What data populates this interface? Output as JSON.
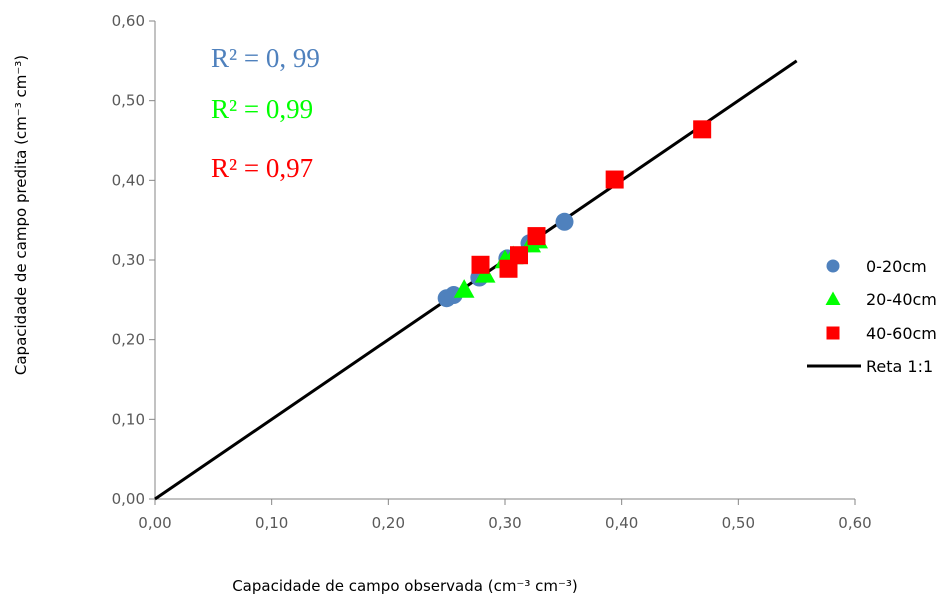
{
  "chart_data": {
    "type": "scatter",
    "xlabel": "Capacidade de campo  observada (cm⁻³ cm⁻³)",
    "ylabel": "Capacidade de campo predita (cm⁻³ cm⁻³)",
    "xlim": [
      0,
      0.6
    ],
    "ylim": [
      0,
      0.6
    ],
    "x_ticks": [
      0,
      0.1,
      0.2,
      0.3,
      0.4,
      0.5,
      0.6
    ],
    "y_ticks": [
      0,
      0.1,
      0.2,
      0.3,
      0.4,
      0.5,
      0.6
    ],
    "x_tick_labels": [
      "0,00",
      "0,10",
      "0,20",
      "0,30",
      "0,40",
      "0,50",
      "0,60"
    ],
    "y_tick_labels": [
      "0,00",
      "0,10",
      "0,20",
      "0,30",
      "0,40",
      "0,50",
      "0,60"
    ],
    "grid": false,
    "legend_position": "right",
    "series": [
      {
        "name": "0-20cm",
        "marker": "circle",
        "color": "#4F81BD",
        "points": [
          [
            0.25,
            0.252
          ],
          [
            0.256,
            0.256
          ],
          [
            0.278,
            0.278
          ],
          [
            0.302,
            0.302
          ],
          [
            0.321,
            0.321
          ],
          [
            0.351,
            0.348
          ]
        ]
      },
      {
        "name": "20-40cm",
        "marker": "triangle",
        "color": "#00FF00",
        "points": [
          [
            0.265,
            0.263
          ],
          [
            0.283,
            0.282
          ],
          [
            0.3,
            0.3
          ],
          [
            0.307,
            0.305
          ],
          [
            0.322,
            0.32
          ],
          [
            0.328,
            0.325
          ]
        ]
      },
      {
        "name": "40-60cm",
        "marker": "square",
        "color": "#FF0000",
        "points": [
          [
            0.279,
            0.294
          ],
          [
            0.303,
            0.289
          ],
          [
            0.312,
            0.306
          ],
          [
            0.327,
            0.33
          ],
          [
            0.394,
            0.401
          ],
          [
            0.469,
            0.464
          ]
        ]
      }
    ],
    "reference_line": {
      "name": "Reta 1:1",
      "color": "#000000",
      "from": [
        0,
        0
      ],
      "to": [
        0.55,
        0.55
      ]
    },
    "annotations": [
      {
        "text": "R² = 0, 99",
        "color": "#4F81BD"
      },
      {
        "text": "R² = 0,99",
        "color": "#00FF00"
      },
      {
        "text": "R² = 0,97",
        "color": "#FF0000"
      }
    ]
  }
}
